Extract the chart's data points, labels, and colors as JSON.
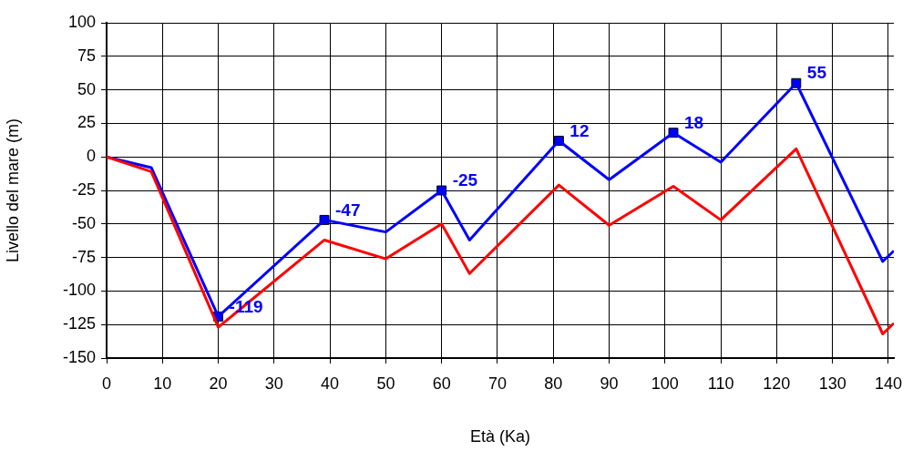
{
  "chart_data": {
    "type": "line",
    "xlabel": "Età (Ka)",
    "ylabel": "Livello del mare (m)",
    "xlim": [
      0,
      141
    ],
    "xticks": [
      0,
      10,
      20,
      30,
      40,
      50,
      60,
      70,
      80,
      90,
      100,
      110,
      120,
      130,
      140
    ],
    "ylim": [
      -150,
      100
    ],
    "yticks": [
      -150,
      -125,
      -100,
      -75,
      -50,
      -25,
      0,
      25,
      50,
      75,
      100
    ],
    "grid": true,
    "legend": false,
    "line_style": "solid",
    "series": [
      {
        "color": "#ff0000",
        "marker": "none",
        "x": [
          0,
          8,
          20,
          39,
          50,
          60,
          65,
          81,
          90,
          101.5,
          110,
          123.5,
          139,
          141
        ],
        "values": [
          0,
          -11,
          -127,
          -62,
          -76,
          -50,
          -87,
          -21,
          -51,
          -22,
          -47,
          6,
          -132,
          -124
        ]
      },
      {
        "color": "#0000ff",
        "marker": "none",
        "x": [
          0,
          8,
          20,
          39,
          50,
          60,
          65,
          81,
          90,
          101.5,
          110,
          123.5,
          139,
          141
        ],
        "values": [
          0,
          -8,
          -119,
          -47,
          -56,
          -25,
          -62,
          12,
          -17,
          18,
          -4,
          55,
          -78,
          -70
        ]
      },
      {
        "type": "scatter",
        "color": "#0000ff",
        "marker": "square",
        "x": [
          20,
          39,
          60,
          81,
          101.5,
          123.5
        ],
        "values": [
          -119,
          -47,
          -25,
          12,
          18,
          55
        ],
        "value_labels": [
          "-119",
          "-47",
          "-25",
          "12",
          "18",
          "55"
        ]
      }
    ]
  }
}
